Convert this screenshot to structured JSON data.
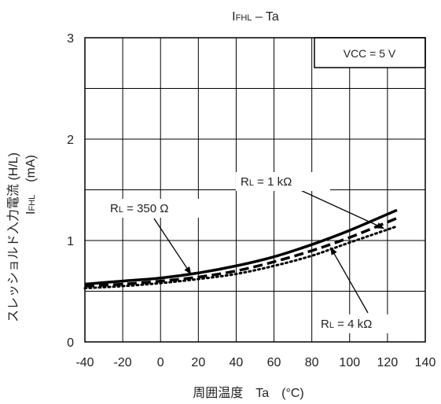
{
  "chart_data": {
    "type": "line",
    "title": {
      "main": "I",
      "sub": "FHL",
      "rest": " – Ta"
    },
    "xlabel": "周囲温度　Ta　(°C)",
    "ylabel": {
      "line1": "スレッショルド入力電流 (H/L)",
      "line2_main": "I",
      "line2_sub": "FHL",
      "line2_rest": "　(mA)"
    },
    "xlim": [
      -40,
      140
    ],
    "ylim": [
      0,
      3
    ],
    "x_ticks": [
      "-40",
      "-20",
      "0",
      "20",
      "40",
      "60",
      "80",
      "100",
      "120",
      "140"
    ],
    "y_ticks": [
      "0",
      "1",
      "2",
      "3"
    ],
    "grid": true,
    "condition": "VCC = 5 V",
    "series": [
      {
        "name": "RL = 350 Ω",
        "style": "solid",
        "x": [
          -40,
          -20,
          0,
          20,
          40,
          60,
          80,
          100,
          125
        ],
        "y": [
          0.57,
          0.6,
          0.63,
          0.68,
          0.75,
          0.84,
          0.96,
          1.1,
          1.3
        ]
      },
      {
        "name": "RL = 1 kΩ",
        "style": "dashed",
        "x": [
          -40,
          -20,
          0,
          20,
          40,
          60,
          80,
          100,
          125
        ],
        "y": [
          0.55,
          0.57,
          0.6,
          0.64,
          0.7,
          0.79,
          0.9,
          1.03,
          1.22
        ]
      },
      {
        "name": "RL = 4 kΩ",
        "style": "dotted",
        "x": [
          -40,
          -20,
          0,
          20,
          40,
          60,
          80,
          100,
          125
        ],
        "y": [
          0.53,
          0.55,
          0.58,
          0.62,
          0.67,
          0.75,
          0.85,
          0.98,
          1.14
        ]
      }
    ],
    "annotations": [
      {
        "label_main": "R",
        "label_sub": "L",
        "label_rest": " = 350 Ω",
        "series": 0,
        "point_x": 16,
        "point_y": 0.67
      },
      {
        "label_main": "R",
        "label_sub": "L",
        "label_rest": " = 1 kΩ",
        "series": 1,
        "point_x": 118,
        "point_y": 1.12
      },
      {
        "label_main": "R",
        "label_sub": "L",
        "label_rest": " = 4 kΩ",
        "series": 2,
        "point_x": 90,
        "point_y": 0.93
      }
    ]
  }
}
